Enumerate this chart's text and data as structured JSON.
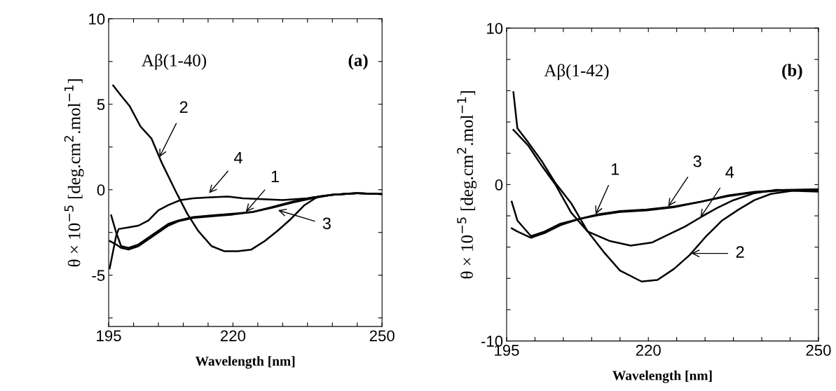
{
  "chart_data": [
    {
      "type": "line",
      "xlabel": "Wavelength [nm]",
      "ylabel": "θ × 10$^{−5}$ [deg.cm$^{2}$.mol$^{−1}$]",
      "xlim": [
        195,
        250
      ],
      "ylim": [
        -8,
        10
      ],
      "xticks": [
        195,
        {
          "value": 200,
          "label": null
        },
        {
          "value": 205,
          "label": null
        },
        {
          "value": 210,
          "label": null
        },
        {
          "value": 215,
          "label": null
        },
        220,
        {
          "value": 225,
          "label": null
        },
        {
          "value": 230,
          "label": null
        },
        {
          "value": 235,
          "label": null
        },
        {
          "value": 240,
          "label": null
        },
        {
          "value": 245,
          "label": null
        },
        250
      ],
      "yticks": [
        {
          "value": -7.5,
          "label": null
        },
        -5,
        {
          "value": -2.5,
          "label": null
        },
        0,
        {
          "value": 2.5,
          "label": null
        },
        5,
        {
          "value": 7.5,
          "label": null
        },
        10
      ],
      "series": [
        {
          "color": "#000000",
          "x": [
            195.5,
            196.5,
            197.5,
            199,
            201,
            203,
            205,
            207,
            209,
            212,
            216,
            220,
            224,
            228,
            232,
            236,
            240,
            245,
            250
          ],
          "values": [
            -1.5,
            -2.5,
            -3.3,
            -3.4,
            -3.2,
            -2.8,
            -2.4,
            -2.0,
            -1.8,
            -1.6,
            -1.5,
            -1.4,
            -1.3,
            -1.0,
            -0.7,
            -0.45,
            -0.3,
            -0.2,
            -0.25
          ]
        },
        {
          "color": "#000000",
          "x": [
            195.9,
            197.5,
            199.2,
            201.4,
            203.6,
            205.8,
            208.5,
            210.8,
            213,
            215.7,
            218.3,
            221,
            223.7,
            226.4,
            229,
            231.7,
            234.4,
            237.1,
            239.8,
            244.2,
            250
          ],
          "values": [
            6.1,
            5.5,
            4.9,
            3.7,
            3.0,
            1.5,
            -0.1,
            -1.4,
            -2.4,
            -3.3,
            -3.6,
            -3.6,
            -3.5,
            -3.0,
            -2.4,
            -1.7,
            -0.9,
            -0.4,
            -0.3,
            -0.2,
            -0.25
          ]
        },
        {
          "color": "#000000",
          "x": [
            195.2,
            196.5,
            197.5,
            199,
            201,
            203,
            205,
            207,
            209,
            212,
            216,
            220,
            224,
            228,
            232,
            236,
            240,
            245,
            250
          ],
          "values": [
            -3.0,
            -3.2,
            -3.4,
            -3.5,
            -3.3,
            -2.9,
            -2.5,
            -2.1,
            -1.85,
            -1.65,
            -1.55,
            -1.45,
            -1.3,
            -1.05,
            -0.75,
            -0.5,
            -0.3,
            -0.2,
            -0.25
          ]
        },
        {
          "color": "#000000",
          "x": [
            195.2,
            196.5,
            197,
            199,
            201,
            203,
            205,
            207,
            209.5,
            212,
            215,
            219,
            222,
            226,
            230,
            235,
            240,
            245,
            250
          ],
          "values": [
            -4.6,
            -2.7,
            -2.3,
            -2.2,
            -2.1,
            -1.8,
            -1.2,
            -0.9,
            -0.6,
            -0.5,
            -0.45,
            -0.4,
            -0.5,
            -0.55,
            -0.6,
            -0.5,
            -0.3,
            -0.2,
            -0.25
          ]
        }
      ],
      "annotations": [
        "Aβ(1-40)",
        "(a)",
        {
          "text": "2",
          "x": 205.2,
          "y": 1.9
        },
        {
          "text": "4",
          "x": 215.2,
          "y": -0.2
        },
        {
          "text": "1",
          "x": 222.6,
          "y": -1.3
        },
        {
          "text": "3",
          "x": 229.1,
          "y": -1.2
        }
      ]
    },
    {
      "type": "line",
      "xlabel": "Wavelength [nm]",
      "ylabel": "θ × 10$^{−5}$ [deg.cm$^{2}$.mol$^{−1}$]",
      "xlim": [
        195,
        250
      ],
      "ylim": [
        -10,
        10
      ],
      "xticks": [
        195,
        {
          "value": 200,
          "label": null
        },
        {
          "value": 205,
          "label": null
        },
        {
          "value": 210,
          "label": null
        },
        {
          "value": 215,
          "label": null
        },
        220,
        {
          "value": 225,
          "label": null
        },
        {
          "value": 230,
          "label": null
        },
        {
          "value": 235,
          "label": null
        },
        {
          "value": 240,
          "label": null
        },
        {
          "value": 245,
          "label": null
        },
        250
      ],
      "yticks": [
        -10,
        {
          "value": -8,
          "label": null
        },
        {
          "value": -6,
          "label": null
        },
        {
          "value": -4,
          "label": null
        },
        {
          "value": -2,
          "label": null
        },
        0,
        {
          "value": 2,
          "label": null
        },
        {
          "value": 4,
          "label": null
        },
        {
          "value": 6,
          "label": null
        },
        {
          "value": 8,
          "label": null
        },
        10
      ],
      "series": [
        {
          "color": "#000000",
          "x": [
            195.9,
            196.9,
            199.3,
            201.7,
            204.5,
            207.8,
            211.2,
            215,
            219.7,
            224.5,
            229.2,
            234,
            238.7,
            244.4,
            250
          ],
          "values": [
            -1.1,
            -2.3,
            -3.3,
            -3.0,
            -2.5,
            -2.2,
            -1.9,
            -1.7,
            -1.6,
            -1.4,
            -1.1,
            -0.7,
            -0.46,
            -0.34,
            -0.3
          ]
        },
        {
          "color": "#000000",
          "x": [
            196.2,
            196.9,
            198.8,
            201.2,
            203.6,
            206.4,
            209.3,
            212.1,
            215,
            218.8,
            221.6,
            224.5,
            227.3,
            230.2,
            233,
            235.9,
            238.7,
            241.6,
            245.4,
            250
          ],
          "values": [
            5.9,
            3.6,
            2.7,
            1.5,
            0.1,
            -1.2,
            -3.0,
            -4.3,
            -5.5,
            -6.2,
            -6.1,
            -5.4,
            -4.5,
            -3.3,
            -2.3,
            -1.6,
            -1.0,
            -0.6,
            -0.4,
            -0.45
          ]
        },
        {
          "color": "#000000",
          "x": [
            195.9,
            196.9,
            199.3,
            201.7,
            204.5,
            207.8,
            211.2,
            215,
            219.7,
            224.5,
            229.2,
            234,
            238.7,
            244.4,
            250
          ],
          "values": [
            -2.8,
            -3.0,
            -3.4,
            -3.1,
            -2.6,
            -2.2,
            -1.95,
            -1.75,
            -1.65,
            -1.45,
            -1.1,
            -0.75,
            -0.5,
            -0.36,
            -0.35
          ]
        },
        {
          "color": "#000000",
          "x": [
            196.2,
            198.8,
            201.2,
            203.6,
            206.4,
            209.3,
            213.1,
            216.9,
            220.7,
            223.5,
            226.4,
            229.2,
            232.1,
            235,
            238.7,
            242.5,
            250
          ],
          "values": [
            3.5,
            2.5,
            1.2,
            0.0,
            -1.8,
            -3.0,
            -3.6,
            -3.9,
            -3.7,
            -3.2,
            -2.7,
            -2.1,
            -1.5,
            -1.0,
            -0.55,
            -0.34,
            -0.38
          ]
        }
      ],
      "annotations": [
        "Aβ(1-42)",
        "(b)",
        {
          "text": "1",
          "x": 210.7,
          "y": -1.9
        },
        {
          "text": "3",
          "x": 223.5,
          "y": -1.4
        },
        {
          "text": "4",
          "x": 229.2,
          "y": -2.1
        },
        {
          "text": "2",
          "x": 227.6,
          "y": -4.4
        }
      ]
    }
  ]
}
